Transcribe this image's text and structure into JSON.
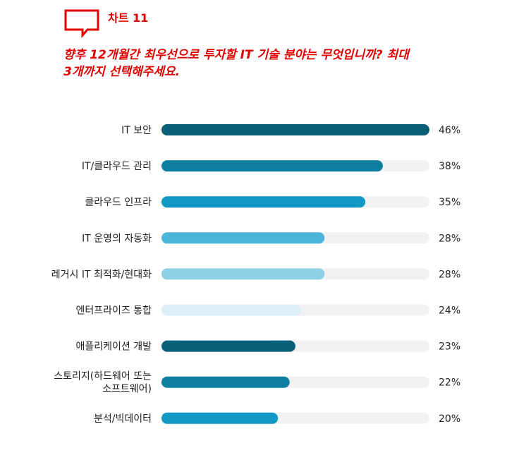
{
  "header": {
    "chart_label": "차트 11",
    "question_lines": [
      "향후 12개월간 최우선으로 투자할 IT 기술 분야는 무엇입니까? 최대",
      "3개까지 선택해주세요."
    ],
    "accent_color": "#e00000"
  },
  "chart_data": {
    "type": "bar",
    "orientation": "horizontal",
    "xlim": [
      0,
      46
    ],
    "track_color": "#f0f1f3",
    "categories": [
      [
        "IT 보안"
      ],
      [
        "IT/클라우드 관리"
      ],
      [
        "클라우드 인프라"
      ],
      [
        "IT 운영의 자동화"
      ],
      [
        "레거시 IT 최적화/현대화"
      ],
      [
        "엔터프라이즈 통합"
      ],
      [
        "애플리케이션 개발"
      ],
      [
        "스토리지(하드웨어 또는",
        "소프트웨어)"
      ],
      [
        "분석/빅데이터"
      ]
    ],
    "values": [
      46,
      38,
      35,
      28,
      28,
      24,
      23,
      22,
      20
    ],
    "value_labels": [
      "46%",
      "38%",
      "35%",
      "28%",
      "28%",
      "24%",
      "23%",
      "22%",
      "20%"
    ],
    "colors": [
      "#0a5f78",
      "#0c7fa0",
      "#1199c4",
      "#4bb6d9",
      "#8ed0e3",
      "#dceff6",
      "#0a5f78",
      "#0c7fa0",
      "#1199c4"
    ]
  }
}
